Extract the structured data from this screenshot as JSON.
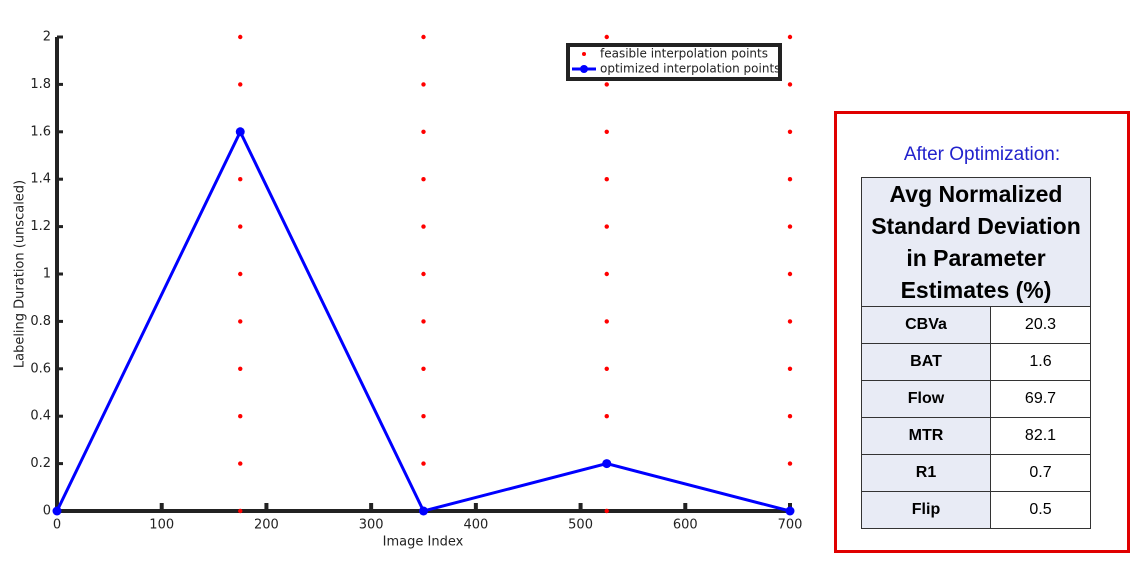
{
  "chart_data": {
    "type": "line",
    "xlabel": "Image Index",
    "ylabel": "Labeling Duration (unscaled)",
    "xlim": [
      0,
      700
    ],
    "xticks": [
      0,
      100,
      200,
      300,
      400,
      500,
      600,
      700
    ],
    "ylim": [
      0,
      2
    ],
    "yticks": [
      0,
      0.2,
      0.4,
      0.6,
      0.8,
      1,
      1.2,
      1.4,
      1.6,
      1.8,
      2
    ],
    "legend_loc": "upper right",
    "series": [
      {
        "name": "feasible interpolation points",
        "color": "#ff0000",
        "mode": "markers",
        "x": [
          175,
          175,
          175,
          175,
          175,
          175,
          175,
          175,
          175,
          175,
          175,
          350,
          350,
          350,
          350,
          350,
          350,
          350,
          350,
          350,
          350,
          350,
          525,
          525,
          525,
          525,
          525,
          525,
          525,
          525,
          525,
          525,
          525,
          700,
          700,
          700,
          700,
          700,
          700,
          700,
          700,
          700,
          700,
          700
        ],
        "values": [
          0,
          0.2,
          0.4,
          0.6,
          0.8,
          1,
          1.2,
          1.4,
          1.6,
          1.8,
          2,
          0,
          0.2,
          0.4,
          0.6,
          0.8,
          1,
          1.2,
          1.4,
          1.6,
          1.8,
          2,
          0,
          0.2,
          0.4,
          0.6,
          0.8,
          1,
          1.2,
          1.4,
          1.6,
          1.8,
          2,
          0,
          0.2,
          0.4,
          0.6,
          0.8,
          1,
          1.2,
          1.4,
          1.6,
          1.8,
          2
        ]
      },
      {
        "name": "optimized interpolation points",
        "color": "#0000ff",
        "mode": "lines+markers",
        "x": [
          0,
          175,
          350,
          525,
          700
        ],
        "values": [
          0,
          1.6,
          0,
          0.2,
          0
        ]
      }
    ]
  },
  "table": {
    "title": "After Optimization:",
    "header": "Avg Normalized Standard Deviation in Parameter Estimates (%)",
    "rows": [
      [
        "CBVa",
        20.3
      ],
      [
        "BAT",
        1.6
      ],
      [
        "Flow",
        69.7
      ],
      [
        "MTR",
        82.1
      ],
      [
        "R1",
        0.7
      ],
      [
        "Flip",
        0.5
      ]
    ]
  }
}
